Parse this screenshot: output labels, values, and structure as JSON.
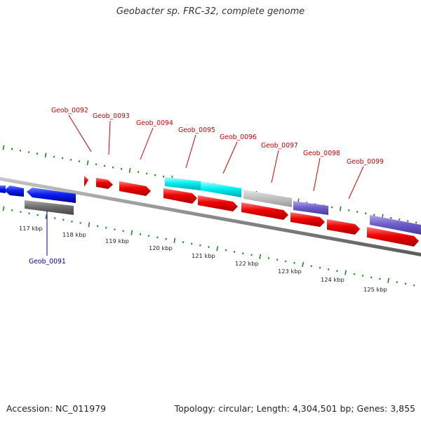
{
  "title": "Geobacter sp. FRC-32, complete genome",
  "footer": {
    "accession": "Accession: NC_011979",
    "summary": "Topology: circular; Length: 4,304,501 bp; Genes: 3,855"
  },
  "colors": {
    "backbone": "#8c8c8c",
    "tick_minor": "#1e8a1e",
    "tick_major": "#1e8a1e",
    "label_red": "#cc0000",
    "label_blue": "#000099",
    "kbp_label": "#222222"
  },
  "kbp_labels": [
    {
      "value": 117,
      "text": "117 kbp"
    },
    {
      "value": 118,
      "text": "118 kbp"
    },
    {
      "value": 119,
      "text": "119 kbp"
    },
    {
      "value": 120,
      "text": "120 kbp"
    },
    {
      "value": 121,
      "text": "121 kbp"
    },
    {
      "value": 122,
      "text": "122 kbp"
    },
    {
      "value": 123,
      "text": "123 kbp"
    },
    {
      "value": 124,
      "text": "124 kbp"
    },
    {
      "value": 125,
      "text": "125 kbp"
    }
  ],
  "gene_labels": [
    {
      "name": "Geob_0091",
      "color": "#000099"
    },
    {
      "name": "Geob_0092",
      "color": "#cc0000"
    },
    {
      "name": "Geob_0093",
      "color": "#cc0000"
    },
    {
      "name": "Geob_0094",
      "color": "#cc0000"
    },
    {
      "name": "Geob_0095",
      "color": "#cc0000"
    },
    {
      "name": "Geob_0096",
      "color": "#cc0000"
    },
    {
      "name": "Geob_0097",
      "color": "#cc0000"
    },
    {
      "name": "Geob_0098",
      "color": "#cc0000"
    },
    {
      "name": "Geob_0099",
      "color": "#cc0000"
    }
  ]
}
